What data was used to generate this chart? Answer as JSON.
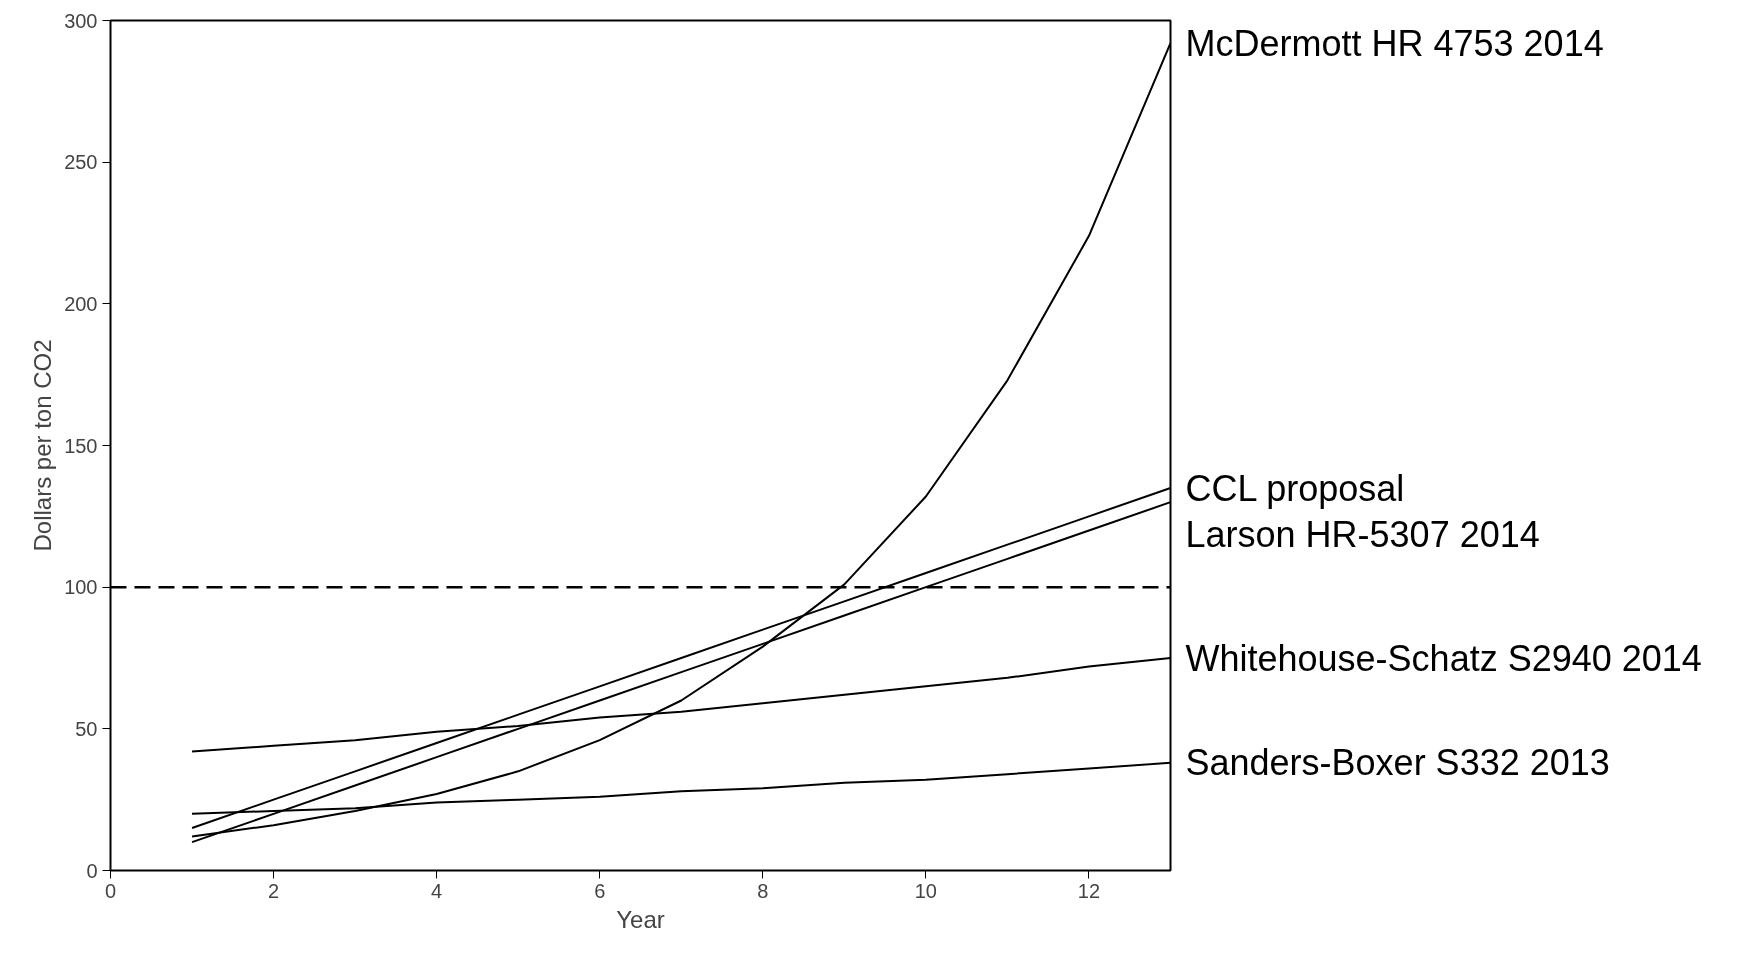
{
  "chart_data": {
    "type": "line",
    "xlabel": "Year",
    "ylabel": "Dollars per ton CO2",
    "xlim": [
      0,
      13
    ],
    "ylim": [
      0,
      300
    ],
    "xticks": [
      0,
      2,
      4,
      6,
      8,
      10,
      12
    ],
    "yticks": [
      0,
      50,
      100,
      150,
      200,
      250,
      300
    ],
    "grid": false,
    "marker": "none",
    "line_style": "solid",
    "x": [
      1,
      2,
      3,
      4,
      5,
      6,
      7,
      8,
      9,
      10,
      11,
      12,
      13
    ],
    "series": [
      {
        "name": "McDermott HR 4753  2014",
        "color": "#000000",
        "values": [
          12,
          16,
          21,
          27,
          35,
          46,
          60,
          79,
          101,
          132,
          173,
          224,
          292
        ]
      },
      {
        "name": "CCL proposal",
        "color": "#000000",
        "values": [
          15,
          25,
          35,
          45,
          55,
          65,
          75,
          85,
          95,
          105,
          115,
          125,
          135
        ]
      },
      {
        "name": "Larson HR-5307  2014",
        "color": "#000000",
        "values": [
          10,
          20,
          30,
          40,
          50,
          60,
          70,
          80,
          90,
          100,
          110,
          120,
          130
        ]
      },
      {
        "name": "Whitehouse-Schatz S2940  2014",
        "color": "#000000",
        "values": [
          42,
          44,
          46,
          49,
          51,
          54,
          56,
          59,
          62,
          65,
          68,
          72,
          75
        ]
      },
      {
        "name": "Sanders-Boxer S332  2013",
        "color": "#000000",
        "values": [
          20,
          21,
          22,
          24,
          25,
          26,
          28,
          29,
          31,
          32,
          34,
          36,
          38
        ]
      }
    ],
    "ref_lines": [
      {
        "axis": "y",
        "value": 100,
        "label": null,
        "color": "#000000",
        "line_style": "dashed"
      }
    ]
  }
}
